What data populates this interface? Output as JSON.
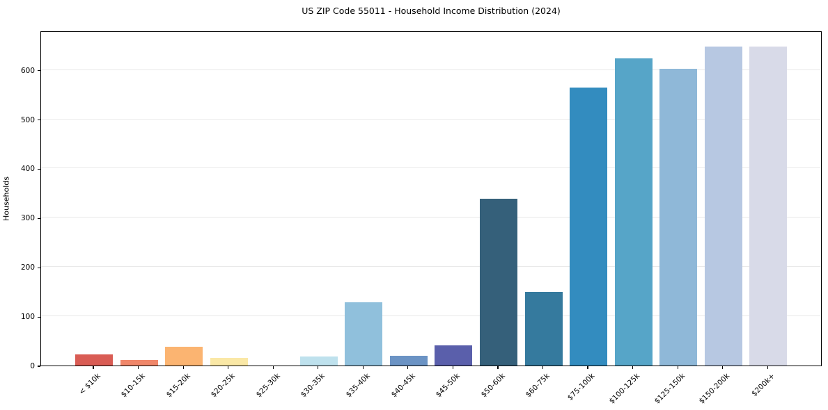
{
  "chart_data": {
    "type": "bar",
    "title": "US ZIP Code 55011 - Household Income Distribution (2024)",
    "xlabel": "",
    "ylabel": "Households",
    "categories": [
      "< $10k",
      "$10-15k",
      "$15-20k",
      "$20-25k",
      "$25-30k",
      "$30-35k",
      "$35-40k",
      "$40-45k",
      "$45-50k",
      "$50-60k",
      "$60-75k",
      "$75-100k",
      "$100-125k",
      "$125-150k",
      "$150-200k",
      "$200k+"
    ],
    "values": [
      22,
      11,
      38,
      16,
      0,
      19,
      128,
      20,
      41,
      338,
      150,
      565,
      624,
      602,
      647,
      647
    ],
    "bar_colors": [
      "#d95c54",
      "#f0876a",
      "#fbb471",
      "#fae8a6",
      "#fdf3c8",
      "#bee1ed",
      "#90c0dc",
      "#6b93c4",
      "#5a5fab",
      "#35607a",
      "#357a9e",
      "#338cbf",
      "#56a5c8",
      "#8fb8d8",
      "#b7c8e2",
      "#d8dae8"
    ],
    "y_ticks": [
      0,
      100,
      200,
      300,
      400,
      500,
      600
    ],
    "ylim": [
      0,
      680
    ],
    "grid": "horizontal",
    "legend": null,
    "axis_color": "#000000",
    "grid_color": "#e9e9e9",
    "background_color": "#ffffff"
  }
}
